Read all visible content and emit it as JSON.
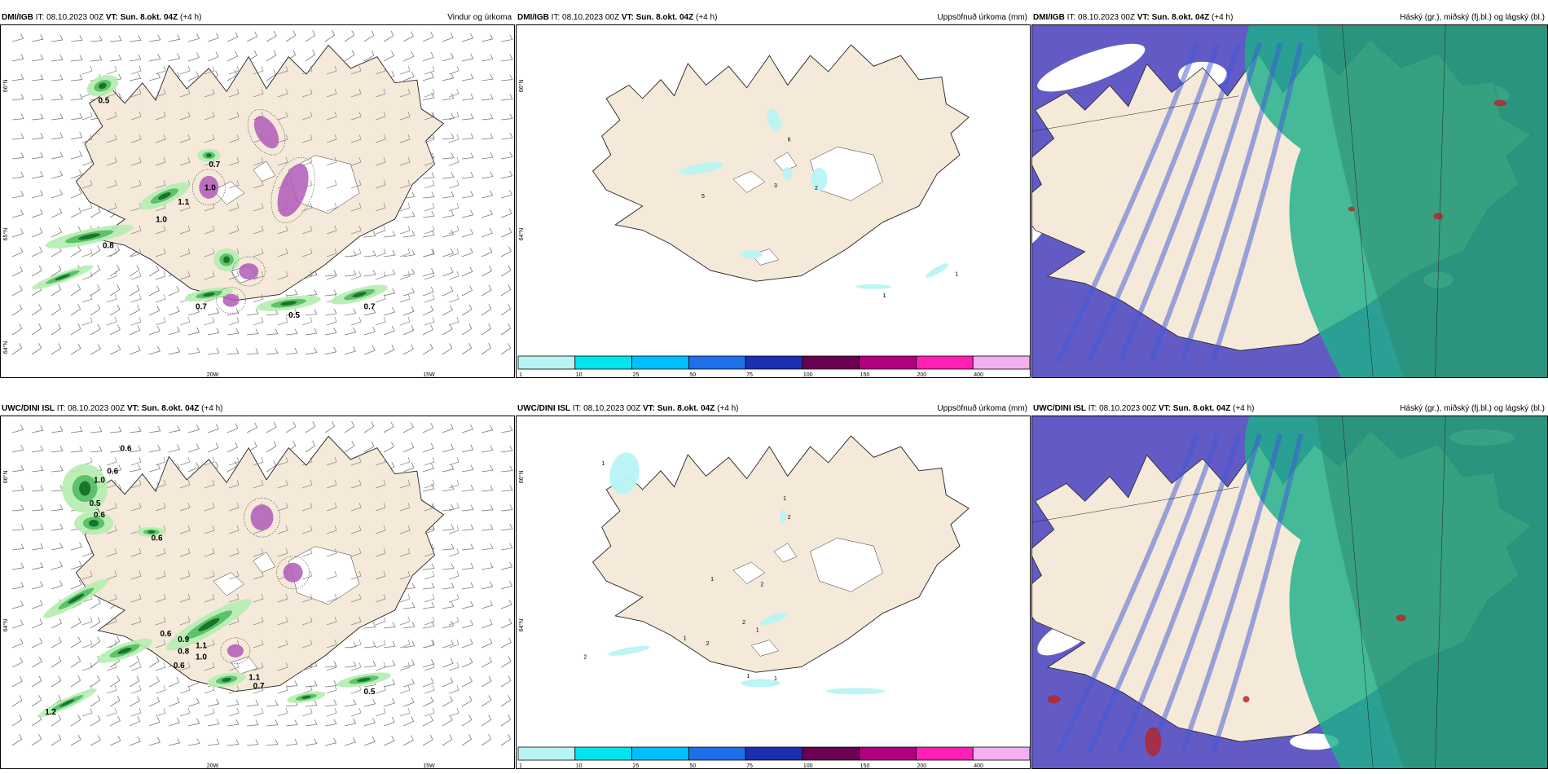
{
  "panels": [
    {
      "model": "DMI/IGB",
      "it_label": "IT:",
      "it_value": "08.10.2023 00Z",
      "vt_label": "VT: Sun. 8.okt. 04Z",
      "lead": "(+4 h)",
      "title": "Vindur og úrkoma",
      "type": "wind",
      "lat_labels": [
        "66°N",
        "65°N",
        "64°N"
      ],
      "lon_labels": [
        "20W",
        "15W"
      ],
      "values": [
        "0.5",
        "0.7",
        "1.0",
        "1.1",
        "1.0",
        "0.8",
        "0.7",
        "0.5",
        "0.7"
      ]
    },
    {
      "model": "DMI/IGB",
      "it_label": "IT:",
      "it_value": "08.10.2023 00Z",
      "vt_label": "VT: Sun. 8.okt. 04Z",
      "lead": "(+4 h)",
      "title": "Uppsöfnuð úrkoma (mm)",
      "type": "precip",
      "lat_labels": [
        "66°N",
        "64°N"
      ],
      "values": [
        "6",
        "3",
        "2",
        "5",
        "1",
        "1"
      ]
    },
    {
      "model": "DMI/IGB",
      "it_label": "IT:",
      "it_value": "08.10.2023 00Z",
      "vt_label": "VT: Sun. 8.okt. 04Z",
      "lead": "(+4 h)",
      "title": "Háský (gr.), miðský (fj.bl.) og lágský (bl.)",
      "type": "cloud"
    },
    {
      "model": "UWC/DINI ISL",
      "it_label": "IT:",
      "it_value": "08.10.2023 00Z",
      "vt_label": "VT: Sun. 8.okt. 04Z",
      "lead": "(+4 h)",
      "title": "",
      "type": "wind",
      "lat_labels": [
        "66°N",
        "64°N"
      ],
      "lon_labels": [
        "20W",
        "15W"
      ],
      "values": [
        "0.6",
        "1.0",
        "0.6",
        "0.5",
        "0.6",
        "0.6",
        "0.6",
        "0.9",
        "0.8",
        "1.1",
        "1.0",
        "0.6",
        "1.1",
        "0.7",
        "0.5",
        "1.2"
      ]
    },
    {
      "model": "UWC/DINI ISL",
      "it_label": "IT:",
      "it_value": "08.10.2023 00Z",
      "vt_label": "VT: Sun. 8.okt. 04Z",
      "lead": "(+4 h)",
      "title": "Uppsöfnuð úrkoma (mm)",
      "type": "precip",
      "lat_labels": [
        "66°N",
        "64°N"
      ],
      "values": [
        "1",
        "1",
        "2",
        "1",
        "2",
        "2",
        "1",
        "1",
        "2",
        "2",
        "1",
        "1"
      ]
    },
    {
      "model": "UWC/DINI ISL",
      "it_label": "IT:",
      "it_value": "08.10.2023 00Z",
      "vt_label": "VT: Sun. 8.okt. 04Z",
      "lead": "(+4 h)",
      "title": "Háský (gr.), miðský (fj.bl.) og lágský (bl.)",
      "type": "cloud"
    }
  ],
  "colorbar": {
    "ticks": [
      "1",
      "10",
      "25",
      "50",
      "75",
      "100",
      "150",
      "200",
      "400"
    ],
    "colors": [
      "#b8f4f4",
      "#00e5ee",
      "#00bfff",
      "#1e6fe8",
      "#1c2fb0",
      "#6a0051",
      "#b1007e",
      "#ff1fb4",
      "#f2b0f0"
    ]
  },
  "colors": {
    "land": "#f5e9d9",
    "wind_barb": "#7a7a7a",
    "precip_light": "#b5edb0",
    "precip_mid": "#52bd63",
    "precip_heavy": "#0f6b22",
    "snow": "#b05ab8",
    "ice": "#ffffff",
    "cloud_low": "#5a52c2",
    "cloud_mid": "#1fb08a",
    "cloud_high": "#2b8a6e"
  }
}
